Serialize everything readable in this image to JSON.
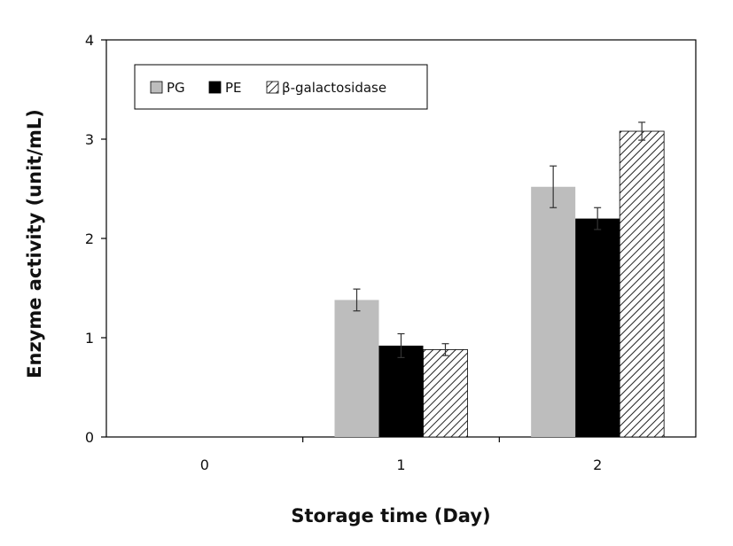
{
  "chart_data": {
    "type": "bar",
    "title": "",
    "xlabel": "Storage time (Day)",
    "ylabel": "Enzyme activity  (unit/mL)",
    "categories": [
      "0",
      "1",
      "2"
    ],
    "ylim": [
      0,
      4
    ],
    "yticks": [
      "0",
      "1",
      "2",
      "3",
      "4"
    ],
    "grid": false,
    "legend_position": "top-left",
    "series": [
      {
        "name": "PG",
        "color": "#bdbdbd",
        "fill": "solid",
        "values": [
          0,
          1.38,
          2.52
        ],
        "errors": [
          0,
          0.11,
          0.21
        ]
      },
      {
        "name": "PE",
        "color": "#000000",
        "fill": "solid",
        "values": [
          0,
          0.92,
          2.2
        ],
        "errors": [
          0,
          0.12,
          0.11
        ]
      },
      {
        "name": "β-galactosidase",
        "color": "#ffffff",
        "fill": "hatched",
        "values": [
          0,
          0.88,
          3.08
        ],
        "errors": [
          0,
          0.06,
          0.09
        ]
      }
    ]
  }
}
